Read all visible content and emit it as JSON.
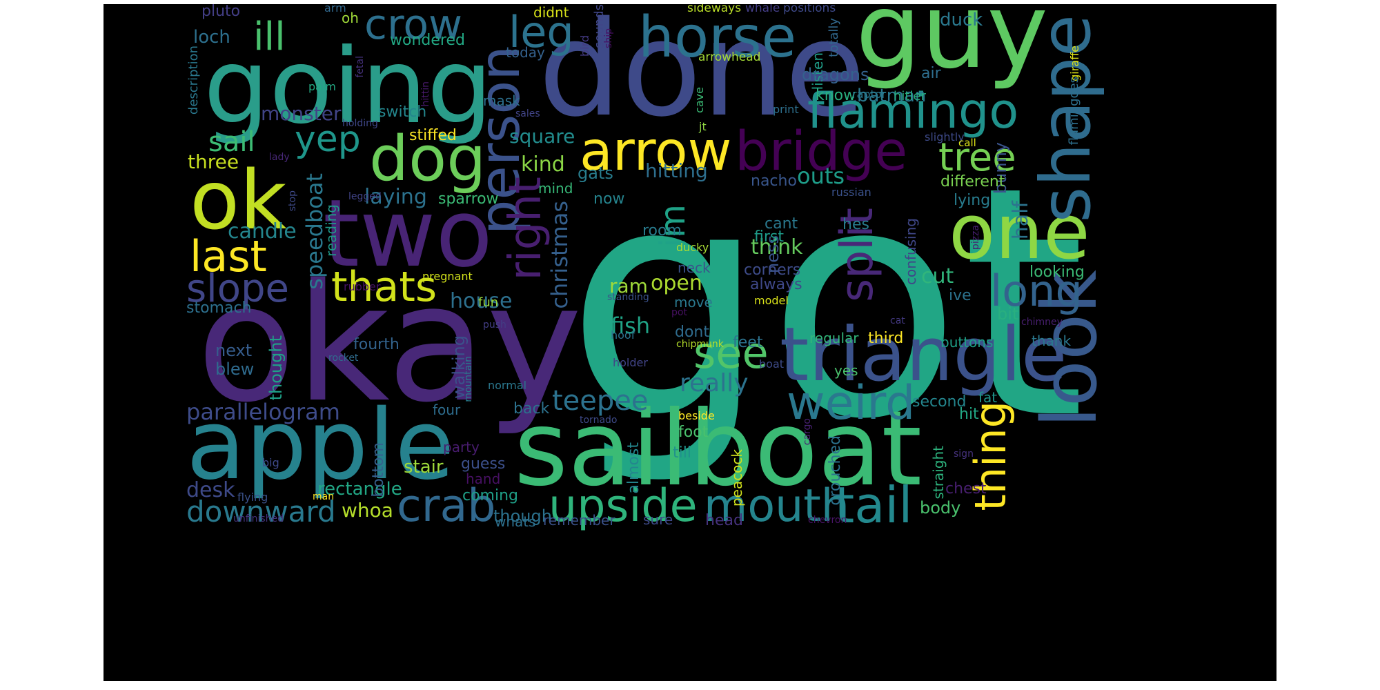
{
  "wordcloud": {
    "background": "#000000",
    "words": [
      {
        "text": "got",
        "color": "#21a685"
      },
      {
        "text": "okay",
        "color": "#482878"
      },
      {
        "text": "done",
        "color": "#3e4a89"
      },
      {
        "text": "guy",
        "color": "#5ec962"
      },
      {
        "text": "going",
        "color": "#2a9d8a"
      },
      {
        "text": "sailboat",
        "color": "#3bbb75"
      },
      {
        "text": "apple",
        "color": "#26828e"
      },
      {
        "text": "two",
        "color": "#482475"
      },
      {
        "text": "ok",
        "color": "#c2df23"
      },
      {
        "text": "triangle",
        "color": "#3b528b"
      },
      {
        "text": "horse",
        "color": "#2c728e"
      },
      {
        "text": "one",
        "color": "#8fd744"
      },
      {
        "text": "shape",
        "color": "#2f6c8e"
      },
      {
        "text": "look",
        "color": "#38598c"
      },
      {
        "text": "upside",
        "color": "#2fb47c"
      },
      {
        "text": "mouth",
        "color": "#25858e"
      },
      {
        "text": "tail",
        "color": "#23898e"
      },
      {
        "text": "crab",
        "color": "#31688e"
      },
      {
        "text": "weird",
        "color": "#2a788e"
      },
      {
        "text": "person",
        "color": "#3b528b"
      },
      {
        "text": "dog",
        "color": "#6ccd5a"
      },
      {
        "text": "bridge",
        "color": "#440154"
      },
      {
        "text": "arrow",
        "color": "#fde725"
      },
      {
        "text": "flamingo",
        "color": "#20928c"
      },
      {
        "text": "thats",
        "color": "#d2e21b"
      },
      {
        "text": "last",
        "color": "#fde725"
      },
      {
        "text": "slope",
        "color": "#404688"
      },
      {
        "text": "ill",
        "color": "#4ac16d"
      },
      {
        "text": "crow",
        "color": "#2d708e"
      },
      {
        "text": "leg",
        "color": "#2c738e"
      },
      {
        "text": "thing",
        "color": "#fde725"
      },
      {
        "text": "long",
        "color": "#33638d"
      },
      {
        "text": "split",
        "color": "#482878"
      },
      {
        "text": "right",
        "color": "#481f70"
      },
      {
        "text": "see",
        "color": "#52c569"
      },
      {
        "text": "tree",
        "color": "#75d054"
      },
      {
        "text": "yep",
        "color": "#1f968b"
      },
      {
        "text": "im",
        "color": "#1fa287"
      },
      {
        "text": "downward",
        "color": "#29798e"
      },
      {
        "text": "teepee",
        "color": "#2c728e"
      },
      {
        "text": "parallelogram",
        "color": "#3e4c8a"
      },
      {
        "text": "christmas",
        "color": "#35608d"
      },
      {
        "text": "speedboat",
        "color": "#2a788e"
      },
      {
        "text": "sail",
        "color": "#3dbc74"
      },
      {
        "text": "kind",
        "color": "#8bd646"
      },
      {
        "text": "really",
        "color": "#2c738e"
      },
      {
        "text": "hitting",
        "color": "#2e6f8e"
      },
      {
        "text": "square",
        "color": "#228c8d"
      },
      {
        "text": "candle",
        "color": "#24868e"
      },
      {
        "text": "house",
        "color": "#2d708e"
      },
      {
        "text": "laying",
        "color": "#2c728e"
      },
      {
        "text": "monster",
        "color": "#414487"
      },
      {
        "text": "think",
        "color": "#65cb5e"
      },
      {
        "text": "open",
        "color": "#addc30"
      },
      {
        "text": "fish",
        "color": "#20a386"
      },
      {
        "text": "cut",
        "color": "#31b57b"
      },
      {
        "text": "outs",
        "color": "#1e9d89"
      },
      {
        "text": "half",
        "color": "#2c738e"
      },
      {
        "text": "bunny",
        "color": "#3a548c"
      },
      {
        "text": "ness",
        "color": "#3a548c"
      },
      {
        "text": "ram",
        "color": "#9fda3a"
      },
      {
        "text": "walking",
        "color": "#3b528b"
      },
      {
        "text": "desk",
        "color": "#3e4a89"
      },
      {
        "text": "stair",
        "color": "#9fda3a"
      },
      {
        "text": "whoa",
        "color": "#b5de2b"
      },
      {
        "text": "rectangle",
        "color": "#22a785"
      },
      {
        "text": "coming",
        "color": "#1fa088"
      },
      {
        "text": "though",
        "color": "#2c728e"
      },
      {
        "text": "stomach",
        "color": "#2d708e"
      },
      {
        "text": "three",
        "color": "#c8e020"
      },
      {
        "text": "loch",
        "color": "#2d708e"
      },
      {
        "text": "pluto",
        "color": "#433e85"
      },
      {
        "text": "oh",
        "color": "#a0da39"
      },
      {
        "text": "arm",
        "color": "#31688e"
      },
      {
        "text": "wondered",
        "color": "#22a884"
      },
      {
        "text": "didnt",
        "color": "#d8e219"
      },
      {
        "text": "today",
        "color": "#34618d"
      },
      {
        "text": "sounds",
        "color": "#404688"
      },
      {
        "text": "bird",
        "color": "#443a83"
      },
      {
        "text": "ship",
        "color": "#471063"
      },
      {
        "text": "sideways",
        "color": "#bade28"
      },
      {
        "text": "whale",
        "color": "#433d84"
      },
      {
        "text": "positions",
        "color": "#3e4989"
      },
      {
        "text": "totally",
        "color": "#31688e"
      },
      {
        "text": "listen",
        "color": "#1f9e89"
      },
      {
        "text": "duck",
        "color": "#2a788e"
      },
      {
        "text": "giraffe",
        "color": "#dfe318"
      },
      {
        "text": "flamingoes",
        "color": "#2d708e"
      },
      {
        "text": "arrowhead",
        "color": "#a5db36"
      },
      {
        "text": "dragons",
        "color": "#34618d"
      },
      {
        "text": "air",
        "color": "#2e6e8e"
      },
      {
        "text": "batman",
        "color": "#2a788e"
      },
      {
        "text": "know",
        "color": "#29af7f"
      },
      {
        "text": "raptor",
        "color": "#29798e"
      },
      {
        "text": "hitler",
        "color": "#29af7f"
      },
      {
        "text": "mask",
        "color": "#2d708e"
      },
      {
        "text": "sales",
        "color": "#414487"
      },
      {
        "text": "description",
        "color": "#2a788e"
      },
      {
        "text": "palm",
        "color": "#23a983"
      },
      {
        "text": "hittin",
        "color": "#481a6c"
      },
      {
        "text": "fetal",
        "color": "#46327e"
      },
      {
        "text": "holding",
        "color": "#3f4788"
      },
      {
        "text": "switch",
        "color": "#24878e"
      },
      {
        "text": "stiffed",
        "color": "#fde725"
      },
      {
        "text": "gats",
        "color": "#287d8e"
      },
      {
        "text": "mind",
        "color": "#37b878"
      },
      {
        "text": "cave",
        "color": "#3bbb75"
      },
      {
        "text": "jt",
        "color": "#90d743"
      },
      {
        "text": "print",
        "color": "#2d708e"
      },
      {
        "text": "slightly",
        "color": "#3e4a89"
      },
      {
        "text": "call",
        "color": "#dde318"
      },
      {
        "text": "lady",
        "color": "#482878"
      },
      {
        "text": "nacho",
        "color": "#39568c"
      },
      {
        "text": "different",
        "color": "#7ad151"
      },
      {
        "text": "stop",
        "color": "#3e4a89"
      },
      {
        "text": "legged",
        "color": "#414487"
      },
      {
        "text": "reading",
        "color": "#1f9a8a"
      },
      {
        "text": "sparrow",
        "color": "#3bbb75"
      },
      {
        "text": "now",
        "color": "#25848e"
      },
      {
        "text": "russian",
        "color": "#3b528b"
      },
      {
        "text": "hes",
        "color": "#287c8e"
      },
      {
        "text": "lying",
        "color": "#287c8e"
      },
      {
        "text": "cant",
        "color": "#2a788e"
      },
      {
        "text": "first",
        "color": "#1e9c89"
      },
      {
        "text": "room",
        "color": "#287c8e"
      },
      {
        "text": "ducky",
        "color": "#a8db34"
      },
      {
        "text": "pizza",
        "color": "#481f70"
      },
      {
        "text": "neck",
        "color": "#3a538b"
      },
      {
        "text": "corners",
        "color": "#3e4c8a"
      },
      {
        "text": "confusing",
        "color": "#3f4788"
      },
      {
        "text": "looking",
        "color": "#3bbb75"
      },
      {
        "text": "always",
        "color": "#3f4889"
      },
      {
        "text": "pregnant",
        "color": "#d2e21b"
      },
      {
        "text": "rubber",
        "color": "#471365"
      },
      {
        "text": "fun",
        "color": "#98d83e"
      },
      {
        "text": "standing",
        "color": "#3b528b"
      },
      {
        "text": "move",
        "color": "#2a788e"
      },
      {
        "text": "model",
        "color": "#dae319"
      },
      {
        "text": "ive",
        "color": "#2c728e"
      },
      {
        "text": "bit",
        "color": "#29af7f"
      },
      {
        "text": "pot",
        "color": "#471063"
      },
      {
        "text": "cat",
        "color": "#443983"
      },
      {
        "text": "chimney",
        "color": "#481f70"
      },
      {
        "text": "push",
        "color": "#433e85"
      },
      {
        "text": "hoof",
        "color": "#2c738e"
      },
      {
        "text": "dont",
        "color": "#2f6c8e"
      },
      {
        "text": "chipmunk",
        "color": "#b5de2b"
      },
      {
        "text": "feet",
        "color": "#2c728e"
      },
      {
        "text": "regular",
        "color": "#32b67a"
      },
      {
        "text": "third",
        "color": "#fde725"
      },
      {
        "text": "buttons",
        "color": "#1fa088"
      },
      {
        "text": "thank",
        "color": "#2a788e"
      },
      {
        "text": "next",
        "color": "#365d8d"
      },
      {
        "text": "blew",
        "color": "#2f6b8e"
      },
      {
        "text": "thought",
        "color": "#1fa187"
      },
      {
        "text": "fourth",
        "color": "#33638d"
      },
      {
        "text": "rocket",
        "color": "#2f6c8e"
      },
      {
        "text": "mountain",
        "color": "#287c8e"
      },
      {
        "text": "holder",
        "color": "#414487"
      },
      {
        "text": "boat",
        "color": "#3e4c8a"
      },
      {
        "text": "yes",
        "color": "#4ac16d"
      },
      {
        "text": "normal",
        "color": "#2a778e"
      },
      {
        "text": "back",
        "color": "#2c728e"
      },
      {
        "text": "four",
        "color": "#2e6d8e"
      },
      {
        "text": "second",
        "color": "#24868e"
      },
      {
        "text": "fat",
        "color": "#1f958b"
      },
      {
        "text": "hit",
        "color": "#22a785"
      },
      {
        "text": "tornado",
        "color": "#3e4a89"
      },
      {
        "text": "beside",
        "color": "#fde725"
      },
      {
        "text": "cargo",
        "color": "#482173"
      },
      {
        "text": "peacock",
        "color": "#d0e11c"
      },
      {
        "text": "almost",
        "color": "#24868e"
      },
      {
        "text": "foot",
        "color": "#4ac16d"
      },
      {
        "text": "till",
        "color": "#21918c"
      },
      {
        "text": "crouched",
        "color": "#2c728e"
      },
      {
        "text": "straight",
        "color": "#2db27d"
      },
      {
        "text": "sign",
        "color": "#46327e"
      },
      {
        "text": "chest",
        "color": "#481f70"
      },
      {
        "text": "party",
        "color": "#481c6e"
      },
      {
        "text": "bottom",
        "color": "#35608d"
      },
      {
        "text": "guess",
        "color": "#3c508b"
      },
      {
        "text": "hand",
        "color": "#471063"
      },
      {
        "text": "big",
        "color": "#3e4989"
      },
      {
        "text": "man",
        "color": "#fde725"
      },
      {
        "text": "flying",
        "color": "#3b528b"
      },
      {
        "text": "unfinished",
        "color": "#46327e"
      },
      {
        "text": "remember",
        "color": "#3b528b"
      },
      {
        "text": "whats",
        "color": "#2d708e"
      },
      {
        "text": "sure",
        "color": "#3e4a89"
      },
      {
        "text": "head",
        "color": "#46327e"
      },
      {
        "text": "chevron",
        "color": "#481467"
      },
      {
        "text": "body",
        "color": "#4ac16d"
      }
    ]
  }
}
